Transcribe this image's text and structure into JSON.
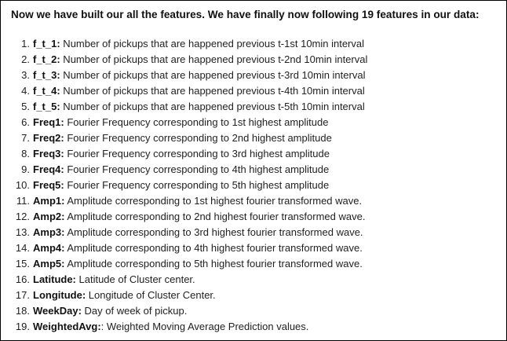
{
  "heading": "Now we have built our all the features. We have finally now following 19 features in our data:",
  "features": [
    {
      "number": "1.",
      "name": "f_t_1:",
      "desc": " Number of pickups that are happened previous t-1st 10min interval"
    },
    {
      "number": "2.",
      "name": "f_t_2:",
      "desc": " Number of pickups that are happened previous t-2nd 10min interval"
    },
    {
      "number": "3.",
      "name": "f_t_3:",
      "desc": " Number of pickups that are happened previous t-3rd 10min interval"
    },
    {
      "number": "4.",
      "name": "f_t_4:",
      "desc": " Number of pickups that are happened previous t-4th 10min interval"
    },
    {
      "number": "5.",
      "name": "f_t_5:",
      "desc": " Number of pickups that are happened previous t-5th 10min interval"
    },
    {
      "number": "6.",
      "name": "Freq1:",
      "desc": " Fourier Frequency corresponding to 1st highest amplitude"
    },
    {
      "number": "7.",
      "name": "Freq2:",
      "desc": " Fourier Frequency corresponding to 2nd highest amplitude"
    },
    {
      "number": "8.",
      "name": "Freq3:",
      "desc": " Fourier Frequency corresponding to 3rd highest amplitude"
    },
    {
      "number": "9.",
      "name": "Freq4:",
      "desc": " Fourier Frequency corresponding to 4th highest amplitude"
    },
    {
      "number": "10.",
      "name": "Freq5:",
      "desc": " Fourier Frequency corresponding to 5th highest amplitude"
    },
    {
      "number": "11.",
      "name": "Amp1:",
      "desc": " Amplitude corresponding to 1st highest fourier transformed wave."
    },
    {
      "number": "12.",
      "name": "Amp2:",
      "desc": " Amplitude corresponding to 2nd highest fourier transformed wave."
    },
    {
      "number": "13.",
      "name": "Amp3:",
      "desc": " Amplitude corresponding to 3rd highest fourier transformed wave."
    },
    {
      "number": "14.",
      "name": "Amp4:",
      "desc": " Amplitude corresponding to 4th highest fourier transformed wave."
    },
    {
      "number": "15.",
      "name": "Amp5:",
      "desc": " Amplitude corresponding to 5th highest fourier transformed wave."
    },
    {
      "number": "16.",
      "name": "Latitude:",
      "desc": " Latitude of Cluster center."
    },
    {
      "number": "17.",
      "name": "Longitude:",
      "desc": " Longitude of Cluster Center."
    },
    {
      "number": "18.",
      "name": "WeekDay:",
      "desc": " Day of week of pickup."
    },
    {
      "number": "19.",
      "name": "WeightedAvg:",
      "desc": ": Weighted Moving Average Prediction values."
    }
  ]
}
